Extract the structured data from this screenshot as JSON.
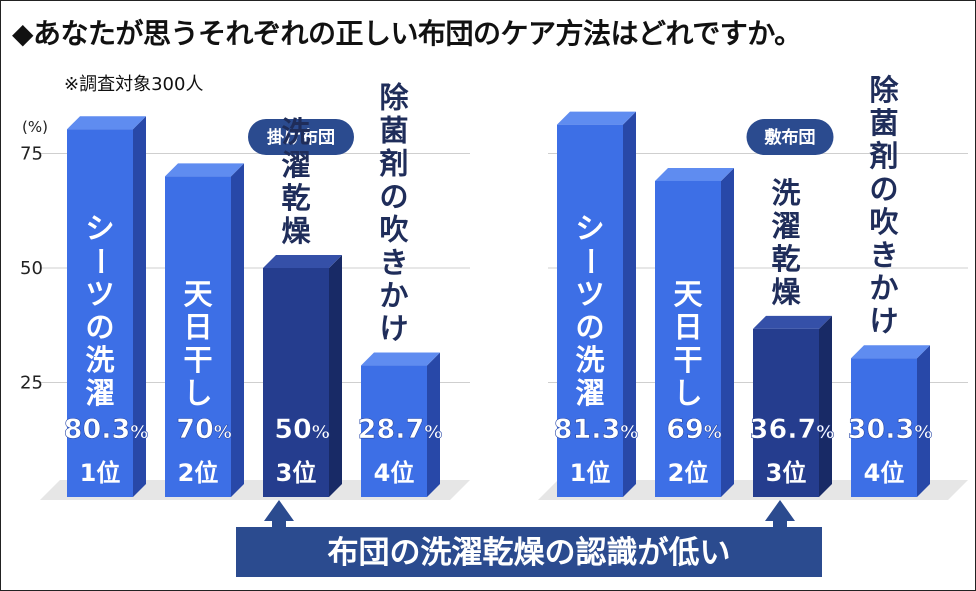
{
  "title": "◆あなたが思うそれぞれの正しい布団のケア方法はどれですか。",
  "note": "※調査対象300人",
  "banner": "布団の洗濯乾燥の認識が低い",
  "colors": {
    "bar_light": "#3d6fe6",
    "bar_light_side": "#2848a8",
    "bar_dark": "#253d8e",
    "bar_dark_side": "#182a66",
    "pill": "#2b4b8f",
    "banner": "#2b4b8f"
  },
  "chart_data": [
    {
      "type": "bar",
      "legend_label": "掛け布団",
      "y_unit": "(%)",
      "yticks": [
        "75",
        "50",
        "25"
      ],
      "ylim": [
        0,
        80
      ],
      "categories": [
        "シーツの洗濯",
        "天日干し",
        "洗濯乾燥",
        "除菌剤の吹きかけ"
      ],
      "values": [
        80.3,
        70,
        50,
        28.7
      ],
      "value_labels": [
        "80.3",
        "70",
        "50",
        "28.7"
      ],
      "value_suffix": "%",
      "ranks": [
        "1位",
        "2位",
        "3位",
        "4位"
      ],
      "highlight_index": 2
    },
    {
      "type": "bar",
      "legend_label": "敷布団",
      "ylim": [
        0,
        80
      ],
      "categories": [
        "シーツの洗濯",
        "天日干し",
        "洗濯乾燥",
        "除菌剤の吹きかけ"
      ],
      "values": [
        81.3,
        69,
        36.7,
        30.3
      ],
      "value_labels": [
        "81.3",
        "69",
        "36.7",
        "30.3"
      ],
      "value_suffix": "%",
      "ranks": [
        "1位",
        "2位",
        "3位",
        "4位"
      ],
      "highlight_index": 2
    }
  ]
}
